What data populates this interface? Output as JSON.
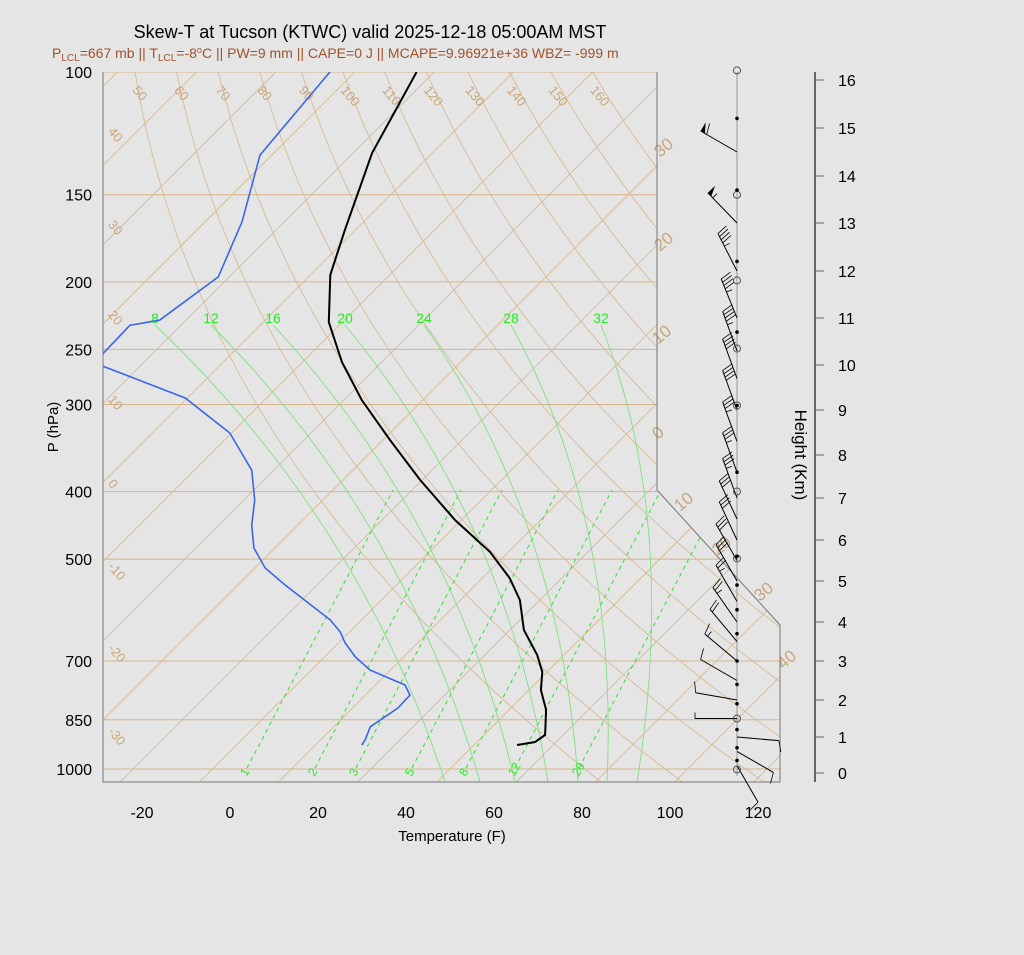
{
  "title": "Skew-T at Tucson (KTWC) valid 2025-12-18 05:00AM MST",
  "subtitle": {
    "p_lcl_prefix": "P",
    "p_lcl_sub": "LCL",
    "p_lcl_value": "=667 mb || ",
    "t_lcl_prefix": "T",
    "t_lcl_sub": "LCL",
    "t_lcl_value": "=-8",
    "t_lcl_deg": "o",
    "t_lcl_unit": "C || ",
    "rest": "PW=9 mm || CAPE=0 J || MCAPE=9.96921e+36 WBZ= -999 m"
  },
  "colors": {
    "temperature": "#000000",
    "dewpoint": "#3a66e8",
    "grid": "#c9a67a",
    "moist": "#22ee22",
    "subtitle": "#a0522d"
  },
  "chart_data": {
    "type": "skew-t",
    "xlabel": "Temperature (F)",
    "ylabel": "P (hPa)",
    "y2label": "Height (Km)",
    "x_ticks": [
      "-20",
      "0",
      "20",
      "40",
      "60",
      "80",
      "100",
      "120"
    ],
    "p_ticks": [
      "100",
      "150",
      "200",
      "250",
      "300",
      "400",
      "500",
      "700",
      "850",
      "1000"
    ],
    "height_ticks": [
      "0",
      "1",
      "2",
      "3",
      "4",
      "5",
      "6",
      "7",
      "8",
      "9",
      "10",
      "11",
      "12",
      "13",
      "14",
      "15",
      "16"
    ],
    "y_scale": "log",
    "dry_adiabat_labels": [
      "50",
      "60",
      "70",
      "80",
      "90",
      "100",
      "110",
      "120",
      "130",
      "140",
      "150",
      "160"
    ],
    "isotherm_left_labels": [
      "40",
      "30",
      "20",
      "10",
      "0",
      "-10",
      "-20",
      "-30"
    ],
    "isotherm_right_labels": [
      "30",
      "20",
      "10",
      "0",
      "10",
      "20",
      "30",
      "40"
    ],
    "moist_adiabat_labels": [
      "8",
      "12",
      "16",
      "20",
      "24",
      "28",
      "32"
    ],
    "mixing_ratio_labels": [
      "1",
      "2",
      "3",
      "5",
      "8",
      "12",
      "20"
    ],
    "temperature": [
      [
        100,
        -116
      ],
      [
        130.7,
        -107.7
      ],
      [
        168.5,
        -96.4
      ],
      [
        195.5,
        -89.5
      ],
      [
        228.5,
        -79.1
      ],
      [
        260.8,
        -67
      ],
      [
        295.6,
        -53.9
      ],
      [
        337.3,
        -38.4
      ],
      [
        384.8,
        -22.5
      ],
      [
        439.1,
        -5.5
      ],
      [
        488.3,
        9.8
      ],
      [
        532.3,
        20.2
      ],
      [
        572.3,
        27.5
      ],
      [
        631.7,
        35.2
      ],
      [
        686.1,
        43.9
      ],
      [
        725.6,
        48.9
      ],
      [
        770.2,
        52.7
      ],
      [
        822.5,
        58.4
      ],
      [
        893.9,
        63.9
      ],
      [
        914.7,
        63.2
      ],
      [
        923.8,
        59.8
      ]
    ],
    "dewpoint": [
      [
        100,
        -135.7
      ],
      [
        131.6,
        -132.7
      ],
      [
        164.1,
        -121.6
      ],
      [
        196.8,
        -114.5
      ],
      [
        227,
        -118
      ],
      [
        230.8,
        -123.6
      ],
      [
        260.8,
        -123.2
      ],
      [
        264.2,
        -120.5
      ],
      [
        293.6,
        -94.5
      ],
      [
        329.6,
        -76.4
      ],
      [
        372.5,
        -63
      ],
      [
        411.3,
        -55.5
      ],
      [
        446.7,
        -50.5
      ],
      [
        481.9,
        -44.8
      ],
      [
        514.7,
        -37.7
      ],
      [
        544.5,
        -29.3
      ],
      [
        611.1,
        -11.1
      ],
      [
        635.8,
        -6.1
      ],
      [
        659.4,
        -2.5
      ],
      [
        690.6,
        3.0
      ],
      [
        721,
        9.3
      ],
      [
        757.8,
        20.7
      ],
      [
        783.3,
        24.1
      ],
      [
        817.6,
        24.3
      ],
      [
        870,
        22.3
      ],
      [
        908.6,
        24.1
      ],
      [
        923.8,
        24.5
      ]
    ],
    "wind_barbs_km_kt_dir": [
      [
        14.5,
        60,
        300
      ],
      [
        13.0,
        55,
        316
      ],
      [
        12.0,
        45,
        333
      ],
      [
        11.0,
        45,
        338
      ],
      [
        10.3,
        45,
        340
      ],
      [
        9.7,
        40,
        340
      ],
      [
        9.0,
        40,
        340
      ],
      [
        8.3,
        35,
        340
      ],
      [
        7.6,
        35,
        340
      ],
      [
        7.0,
        35,
        340
      ],
      [
        6.5,
        30,
        335
      ],
      [
        6.0,
        30,
        335
      ],
      [
        5.5,
        30,
        330
      ],
      [
        5.0,
        30,
        330
      ],
      [
        4.5,
        25,
        330
      ],
      [
        4.0,
        25,
        325
      ],
      [
        3.5,
        20,
        320
      ],
      [
        3.0,
        15,
        310
      ],
      [
        2.5,
        10,
        300
      ],
      [
        2.0,
        10,
        280
      ],
      [
        1.5,
        5,
        270
      ],
      [
        1.0,
        10,
        95
      ],
      [
        0.6,
        10,
        120
      ],
      [
        0.2,
        10,
        150
      ]
    ],
    "circle_markers_km": [
      16.2,
      13.6,
      11.8,
      10.35,
      9.1,
      7.15,
      5.55,
      1.5,
      0.1
    ],
    "dot_markers_km": [
      15.2,
      13.7,
      12.2,
      10.7,
      9.1,
      7.6,
      5.6,
      4.9,
      4.3,
      3.7,
      3.0,
      2.4,
      1.9,
      1.2,
      0.7,
      0.35
    ]
  }
}
